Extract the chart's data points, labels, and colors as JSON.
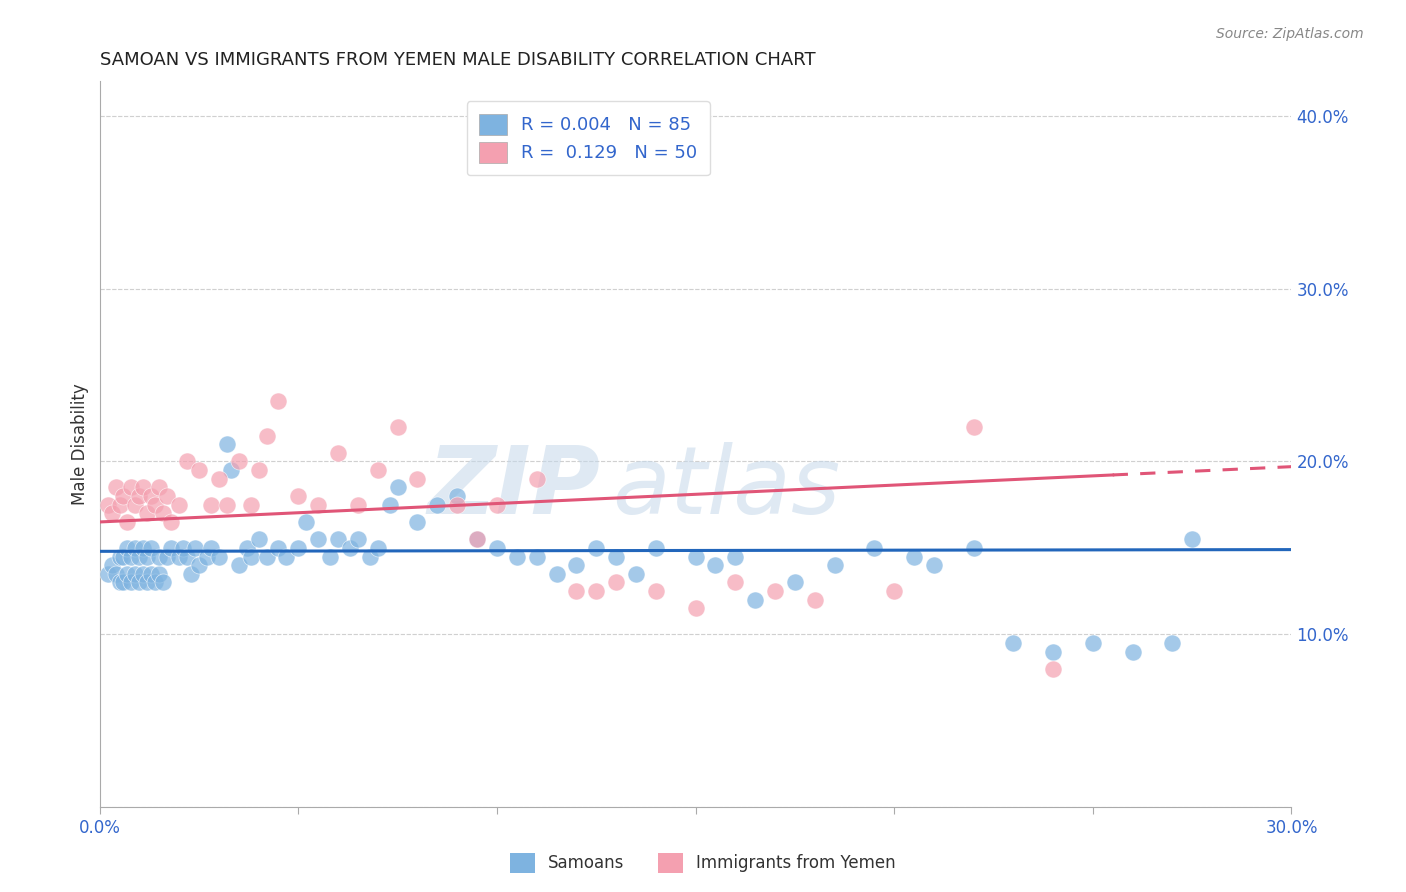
{
  "title": "SAMOAN VS IMMIGRANTS FROM YEMEN MALE DISABILITY CORRELATION CHART",
  "source": "Source: ZipAtlas.com",
  "ylabel": "Male Disability",
  "x_min": 0.0,
  "x_max": 0.3,
  "y_min": 0.0,
  "y_max": 0.42,
  "legend_R_blue": "0.004",
  "legend_N_blue": "85",
  "legend_R_pink": "0.129",
  "legend_N_pink": "50",
  "blue_color": "#7EB3E0",
  "pink_color": "#F4A0B0",
  "blue_line_color": "#2266BB",
  "pink_line_color": "#E05577",
  "watermark_zip": "ZIP",
  "watermark_atlas": "atlas",
  "samoans_label": "Samoans",
  "yemen_label": "Immigrants from Yemen",
  "blue_scatter_x": [
    0.002,
    0.003,
    0.004,
    0.005,
    0.005,
    0.006,
    0.006,
    0.007,
    0.007,
    0.008,
    0.008,
    0.009,
    0.009,
    0.01,
    0.01,
    0.011,
    0.011,
    0.012,
    0.012,
    0.013,
    0.013,
    0.014,
    0.015,
    0.015,
    0.016,
    0.017,
    0.018,
    0.02,
    0.021,
    0.022,
    0.023,
    0.024,
    0.025,
    0.027,
    0.028,
    0.03,
    0.032,
    0.033,
    0.035,
    0.037,
    0.038,
    0.04,
    0.042,
    0.045,
    0.047,
    0.05,
    0.052,
    0.055,
    0.058,
    0.06,
    0.063,
    0.065,
    0.068,
    0.07,
    0.073,
    0.075,
    0.08,
    0.085,
    0.09,
    0.095,
    0.1,
    0.105,
    0.11,
    0.115,
    0.12,
    0.125,
    0.13,
    0.135,
    0.14,
    0.15,
    0.155,
    0.16,
    0.165,
    0.175,
    0.185,
    0.195,
    0.205,
    0.21,
    0.22,
    0.23,
    0.24,
    0.25,
    0.26,
    0.27,
    0.275
  ],
  "blue_scatter_y": [
    0.135,
    0.14,
    0.135,
    0.13,
    0.145,
    0.13,
    0.145,
    0.135,
    0.15,
    0.13,
    0.145,
    0.135,
    0.15,
    0.13,
    0.145,
    0.135,
    0.15,
    0.13,
    0.145,
    0.135,
    0.15,
    0.13,
    0.135,
    0.145,
    0.13,
    0.145,
    0.15,
    0.145,
    0.15,
    0.145,
    0.135,
    0.15,
    0.14,
    0.145,
    0.15,
    0.145,
    0.21,
    0.195,
    0.14,
    0.15,
    0.145,
    0.155,
    0.145,
    0.15,
    0.145,
    0.15,
    0.165,
    0.155,
    0.145,
    0.155,
    0.15,
    0.155,
    0.145,
    0.15,
    0.175,
    0.185,
    0.165,
    0.175,
    0.18,
    0.155,
    0.15,
    0.145,
    0.145,
    0.135,
    0.14,
    0.15,
    0.145,
    0.135,
    0.15,
    0.145,
    0.14,
    0.145,
    0.12,
    0.13,
    0.14,
    0.15,
    0.145,
    0.14,
    0.15,
    0.095,
    0.09,
    0.095,
    0.09,
    0.095,
    0.155
  ],
  "pink_scatter_x": [
    0.002,
    0.003,
    0.004,
    0.005,
    0.006,
    0.007,
    0.008,
    0.009,
    0.01,
    0.011,
    0.012,
    0.013,
    0.014,
    0.015,
    0.016,
    0.017,
    0.018,
    0.02,
    0.022,
    0.025,
    0.028,
    0.03,
    0.032,
    0.035,
    0.038,
    0.04,
    0.042,
    0.045,
    0.05,
    0.055,
    0.06,
    0.065,
    0.07,
    0.075,
    0.08,
    0.09,
    0.095,
    0.1,
    0.11,
    0.12,
    0.125,
    0.13,
    0.14,
    0.15,
    0.16,
    0.17,
    0.18,
    0.2,
    0.22,
    0.24
  ],
  "pink_scatter_y": [
    0.175,
    0.17,
    0.185,
    0.175,
    0.18,
    0.165,
    0.185,
    0.175,
    0.18,
    0.185,
    0.17,
    0.18,
    0.175,
    0.185,
    0.17,
    0.18,
    0.165,
    0.175,
    0.2,
    0.195,
    0.175,
    0.19,
    0.175,
    0.2,
    0.175,
    0.195,
    0.215,
    0.235,
    0.18,
    0.175,
    0.205,
    0.175,
    0.195,
    0.22,
    0.19,
    0.175,
    0.155,
    0.175,
    0.19,
    0.125,
    0.125,
    0.13,
    0.125,
    0.115,
    0.13,
    0.125,
    0.12,
    0.125,
    0.22,
    0.08
  ],
  "blue_line_y_start": 0.148,
  "blue_line_y_end": 0.149,
  "pink_line_y_start": 0.165,
  "pink_line_y_end": 0.197,
  "pink_line_solid_end_x": 0.255,
  "background_color": "#ffffff",
  "grid_color": "#cccccc"
}
